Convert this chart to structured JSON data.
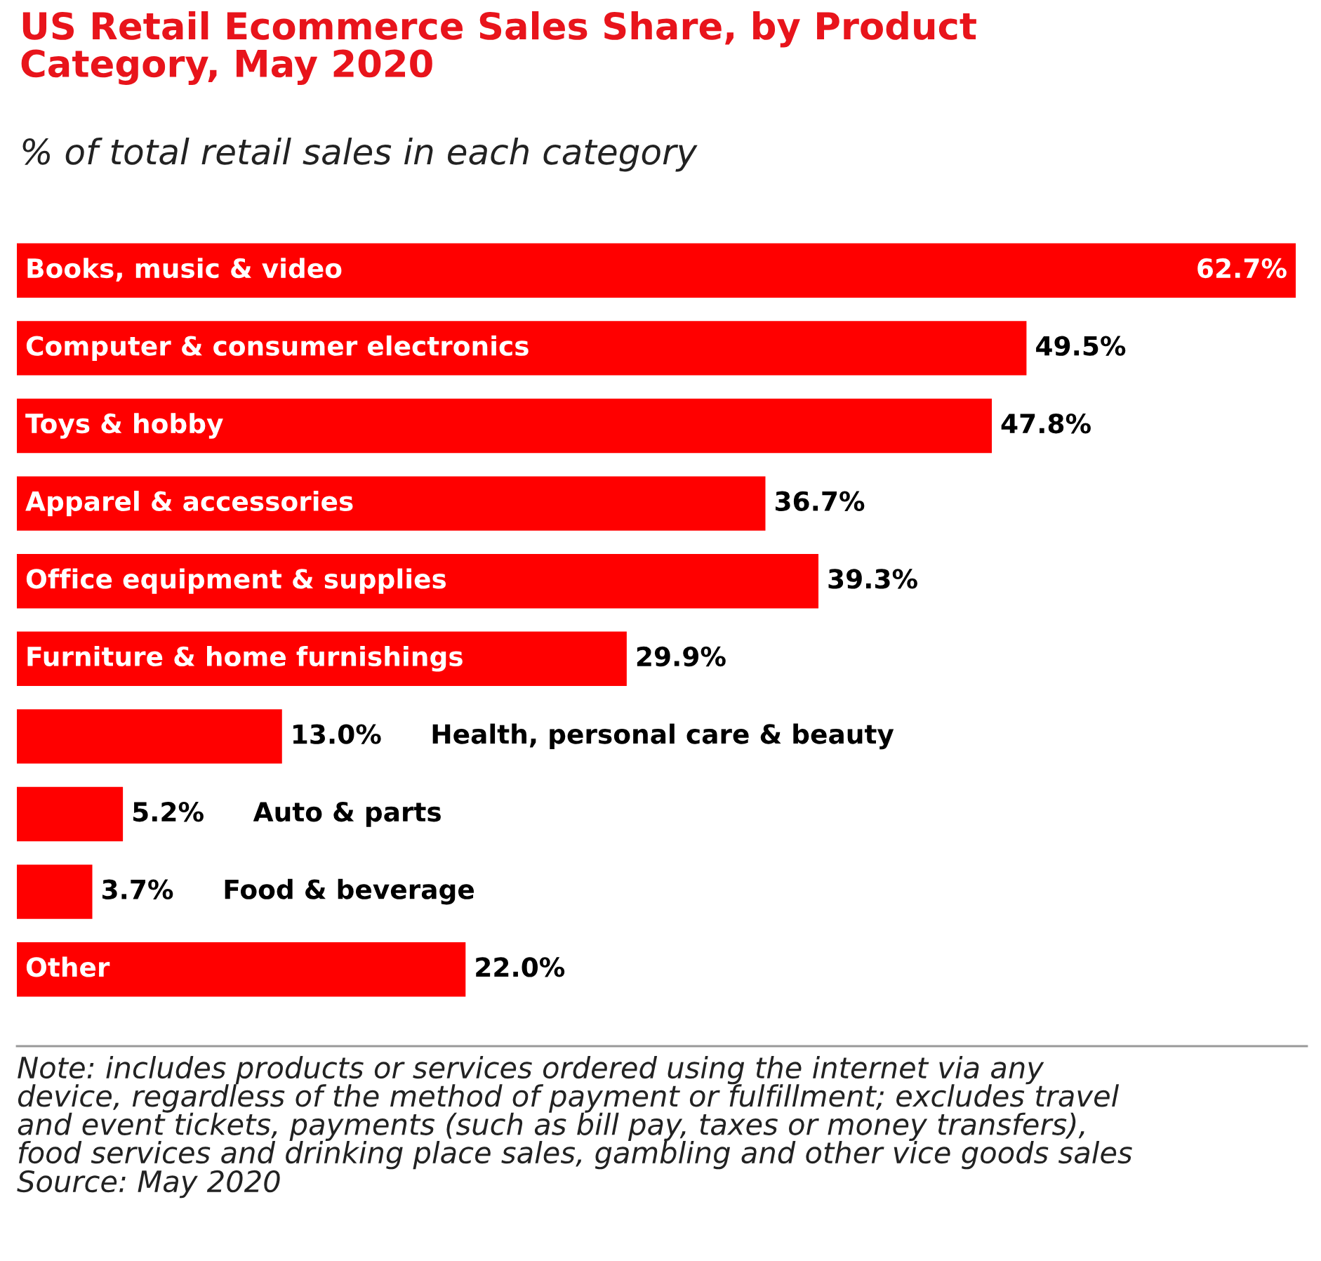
{
  "chart_data": {
    "type": "bar",
    "orientation": "horizontal",
    "title": "US Retail Ecommerce Sales Share, by Product\nCategory, May 2020",
    "subtitle": "% of total retail sales in each category",
    "categories": [
      "Books, music & video",
      "Computer & consumer electronics",
      "Toys & hobby",
      "Apparel & accessories",
      "Office equipment & supplies",
      "Furniture & home furnishings",
      "Health, personal care & beauty",
      "Auto & parts",
      "Food & beverage",
      "Other"
    ],
    "values": [
      62.7,
      49.5,
      47.8,
      36.7,
      39.3,
      29.9,
      13.0,
      5.2,
      3.7,
      22.0
    ],
    "value_labels": [
      "62.7%",
      "49.5%",
      "47.8%",
      "36.7%",
      "39.3%",
      "29.9%",
      "13.0%",
      "5.2%",
      "3.7%",
      "22.0%"
    ],
    "color": "#ff0000",
    "annotations": [
      "Note: includes products or services ordered using the internet via any\ndevice, regardless of the method of payment or fulfillment; excludes travel\nand event tickets, payments (such as bill pay, taxes or money transfers),\nfood services and drinking place sales, gambling and other vice goods sales",
      "Source: May 2020"
    ]
  }
}
